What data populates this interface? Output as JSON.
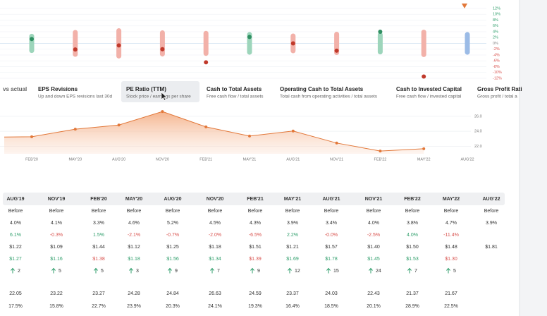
{
  "range_chart": {
    "type": "range",
    "ranges": [
      3.3,
      4.6,
      5.2,
      4.5,
      4.3,
      3.9,
      3.4,
      4.0,
      3.8,
      4.7,
      3.9
    ],
    "surprises": [
      1.5,
      -2.1,
      -0.7,
      -2.0,
      -6.5,
      2.2,
      -0.0,
      -2.5,
      4.0,
      -11.4
    ],
    "bar_colors": [
      "#9dd5bb",
      "#f2b1a9",
      "#f2b1a9",
      "#f2b1a9",
      "#f2b1a9",
      "#9dd5bb",
      "#f2b1a9",
      "#f2b1a9",
      "#9dd5bb",
      "#f2b1a9",
      "#9bbbe6"
    ],
    "dot_colors": [
      "#2f8f62",
      "#c0392b",
      "#c0392b",
      "#c0392b",
      "#c0392b",
      "#2f8f62",
      "#c0392b",
      "#c0392b",
      "#2f8f62",
      "#c0392b"
    ],
    "ylim": [
      -12,
      12
    ],
    "yticks": [
      {
        "value": 12,
        "label": "12%"
      },
      {
        "value": 10,
        "label": "10%"
      },
      {
        "value": 8,
        "label": "8%"
      },
      {
        "value": 6,
        "label": "6%"
      },
      {
        "value": 4,
        "label": "4%"
      },
      {
        "value": 2,
        "label": "2%"
      },
      {
        "value": 0,
        "label": "0%"
      },
      {
        "value": -2,
        "label": "-2%"
      },
      {
        "value": -4,
        "label": "-4%"
      },
      {
        "value": -6,
        "label": "-6%"
      },
      {
        "value": -8,
        "label": "-8%"
      },
      {
        "value": -10,
        "label": "-10%"
      },
      {
        "value": -12,
        "label": "-12%"
      }
    ],
    "tick_colors": {
      "positive": "#2f9e6b",
      "negative": "#d9534f",
      "zero": "#888888"
    },
    "grid": true
  },
  "tabs": [
    {
      "title": "vs actual"
    },
    {
      "title": "EPS Revisions",
      "subtitle": "Up and down EPS revisions last 30d"
    },
    {
      "title": "PE Ratio (TTM)",
      "subtitle": "Stock price / earnings per share",
      "selected": true
    },
    {
      "title": "Cash to Total Assets",
      "subtitle": "Free cash flow / total assets"
    },
    {
      "title": "Operating Cash to Total Assets",
      "subtitle": "Total cash from operating activities / total assets"
    },
    {
      "title": "Cash to Invested Capital",
      "subtitle": "Free cash flow / invested capital"
    },
    {
      "title": "Gross Profit Rati",
      "subtitle": "Gross profit / total a"
    }
  ],
  "pe_chart": {
    "type": "area",
    "categories": [
      null,
      "FEB'20",
      "MAY'20",
      "AUG'20",
      "NOV'20",
      "FEB'21",
      "MAY'21",
      "AUG'21",
      "NOV'21",
      "FEB'22",
      "MAY'22",
      "AUG'22"
    ],
    "values": [
      23.22,
      23.27,
      24.28,
      24.84,
      26.63,
      24.59,
      23.37,
      24.03,
      22.43,
      21.37,
      21.67,
      null
    ],
    "color": "#e2783a",
    "ylim": [
      21,
      27.4
    ],
    "yticks": [
      {
        "value": 26,
        "label": "26.0"
      },
      {
        "value": 24,
        "label": "24.0"
      },
      {
        "value": 22,
        "label": "22.0"
      }
    ],
    "grid": true
  },
  "table": {
    "headers": [
      "AUG'19",
      "NOV'19",
      "FEB'20",
      "MAY'20",
      "AUG'20",
      "NOV'20",
      "FEB'21",
      "MAY'21",
      "AUG'21",
      "NOV'21",
      "FEB'22",
      "MAY'22",
      "AUG'22"
    ],
    "rows": [
      {
        "cells": [
          "Before",
          "Before",
          "Before",
          "Before",
          "Before",
          "Before",
          "Before",
          "Before",
          "Before",
          "Before",
          "Before",
          "Before",
          "Before"
        ]
      },
      {
        "cells": [
          "4.0%",
          "4.1%",
          "3.3%",
          "4.6%",
          "5.2%",
          "4.5%",
          "4.3%",
          "3.9%",
          "3.4%",
          "4.0%",
          "3.8%",
          "4.7%",
          "3.9%"
        ]
      },
      {
        "cells": [
          "6.1%",
          "-0.3%",
          "1.5%",
          "-2.1%",
          "-0.7%",
          "-2.0%",
          "-6.5%",
          "2.2%",
          "-0.0%",
          "-2.5%",
          "4.0%",
          "-11.4%"
        ],
        "colors": [
          "#2f9e6b",
          "#d9534f",
          "#2f9e6b",
          "#d9534f",
          "#d9534f",
          "#d9534f",
          "#d9534f",
          "#2f9e6b",
          "#d9534f",
          "#d9534f",
          "#2f9e6b",
          "#d9534f"
        ]
      },
      {
        "cells": [
          "$1.22",
          "$1.09",
          "$1.44",
          "$1.12",
          "$1.25",
          "$1.18",
          "$1.51",
          "$1.21",
          "$1.57",
          "$1.40",
          "$1.50",
          "$1.48",
          "$1.81"
        ]
      },
      {
        "cells": [
          "$1.27",
          "$1.16",
          "$1.38",
          "$1.18",
          "$1.56",
          "$1.34",
          "$1.39",
          "$1.69",
          "$1.78",
          "$1.45",
          "$1.53",
          "$1.30"
        ],
        "colors": [
          "#2f9e6b",
          "#2f9e6b",
          "#d9534f",
          "#2f9e6b",
          "#2f9e6b",
          "#2f9e6b",
          "#d9534f",
          "#2f9e6b",
          "#2f9e6b",
          "#2f9e6b",
          "#2f9e6b",
          "#d9534f"
        ]
      },
      {
        "cells": [
          "2",
          "5",
          "5",
          "3",
          "9",
          "7",
          "9",
          "12",
          "15",
          "24",
          "7",
          "5"
        ],
        "arrow_color": "#2f9e6b"
      },
      {
        "cells": [
          "22.05",
          "23.22",
          "23.27",
          "24.28",
          "24.84",
          "26.63",
          "24.59",
          "23.37",
          "24.03",
          "22.43",
          "21.37",
          "21.67"
        ]
      },
      {
        "cells": [
          "17.5%",
          "15.8%",
          "22.7%",
          "23.9%",
          "20.3%",
          "24.1%",
          "19.3%",
          "16.4%",
          "18.5%",
          "20.1%",
          "28.9%",
          "22.5%"
        ]
      }
    ]
  }
}
